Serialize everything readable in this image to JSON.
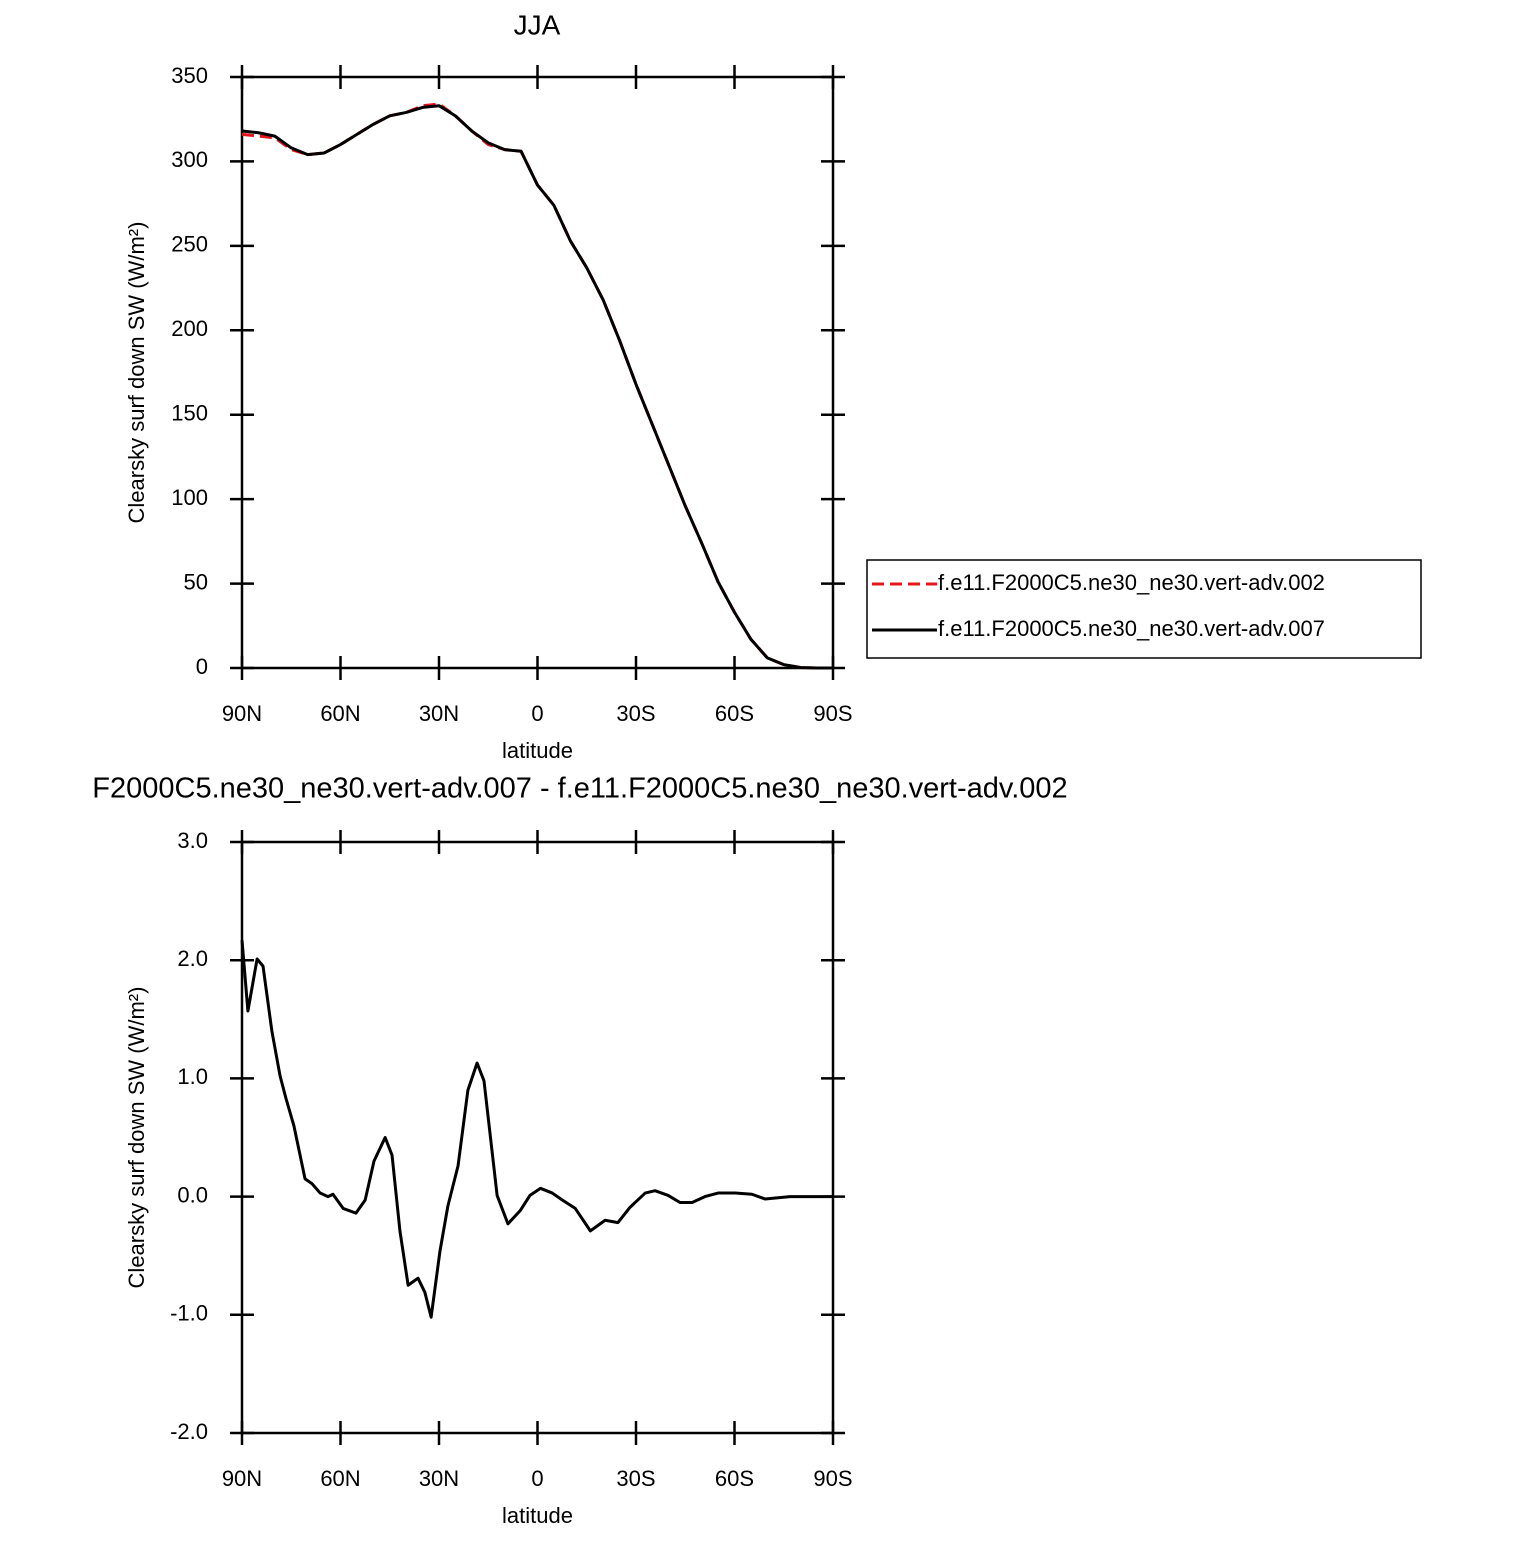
{
  "chart_data": [
    {
      "type": "line",
      "title": "JJA",
      "xlabel": "latitude",
      "ylabel": "Clearsky surf down SW (W/m²)",
      "x": [
        90,
        85,
        80,
        75,
        70,
        65,
        60,
        55,
        50,
        45,
        40,
        35,
        30,
        25,
        20,
        15,
        10,
        5,
        0,
        -5,
        -10,
        -15,
        -20,
        -25,
        -30,
        -35,
        -40,
        -45,
        -50,
        -55,
        -60,
        -65,
        -70,
        -75,
        -80,
        -85,
        -90
      ],
      "xlim": [
        90,
        -90
      ],
      "xticks": [
        {
          "value": 90,
          "label": "90N"
        },
        {
          "value": 60,
          "label": "60N"
        },
        {
          "value": 30,
          "label": "30N"
        },
        0,
        {
          "value": -30,
          "label": "30S"
        },
        {
          "value": -60,
          "label": "60S"
        },
        {
          "value": -90,
          "label": "90S"
        }
      ],
      "ylim": [
        0,
        350
      ],
      "yticks": [
        0,
        50,
        100,
        150,
        200,
        250,
        300,
        350
      ],
      "legend": "right",
      "series": [
        {
          "name": "f.e11.F2000C5.ne30_ne30.vert-adv.002",
          "color": "#e8141c",
          "dash": true,
          "values": [
            316,
            315,
            314,
            307,
            304,
            305,
            310,
            316,
            322,
            327,
            329,
            333,
            334,
            327,
            318,
            310,
            307,
            306,
            286,
            274,
            253,
            237,
            218,
            194,
            168,
            144,
            120,
            96,
            74,
            51,
            33,
            17,
            6,
            2,
            0.3,
            0,
            0
          ]
        },
        {
          "name": "f.e11.F2000C5.ne30_ne30.vert-adv.007",
          "color": "#000000",
          "dash": false,
          "values": [
            318,
            317,
            315,
            308,
            304,
            305,
            310,
            316,
            322,
            327,
            329,
            332,
            333,
            327,
            318,
            311,
            307,
            306,
            286,
            274,
            253,
            237,
            218,
            194,
            168,
            144,
            120,
            96,
            74,
            51,
            33,
            17,
            6,
            2,
            0.3,
            0,
            0
          ]
        }
      ]
    },
    {
      "type": "line",
      "title": "F2000C5.ne30_ne30.vert-adv.007 - f.e11.F2000C5.ne30_ne30.vert-adv.002",
      "xlabel": "latitude",
      "ylabel": "Clearsky surf down SW (W/m²)",
      "x": [
        90,
        88.2,
        85.4,
        83.6,
        80.9,
        78.4,
        76.6,
        74.2,
        70.8,
        68.7,
        66.2,
        63.8,
        62.3,
        59.2,
        55.3,
        52.5,
        49.8,
        46.4,
        44.3,
        41.9,
        39.4,
        36.4,
        34.3,
        32.4,
        29.7,
        27.3,
        24.2,
        21.2,
        18.4,
        16.3,
        12.3,
        9.0,
        5.3,
        2.3,
        -0.9,
        -4.5,
        -7.6,
        -11.5,
        -16.1,
        -20.6,
        -24.5,
        -28.2,
        -32.8,
        -35.8,
        -39.8,
        -43.4,
        -47.1,
        -51.0,
        -55.0,
        -60.2,
        -65.3,
        -69.3,
        -76.9,
        -90
      ],
      "xlim": [
        90,
        -90
      ],
      "xticks": [
        {
          "value": 90,
          "label": "90N"
        },
        {
          "value": 60,
          "label": "60N"
        },
        {
          "value": 30,
          "label": "30N"
        },
        0,
        {
          "value": -30,
          "label": "30S"
        },
        {
          "value": -60,
          "label": "60S"
        },
        {
          "value": -90,
          "label": "90S"
        }
      ],
      "ylim": [
        -2,
        3
      ],
      "yticks": [
        {
          "value": -2,
          "label": "-2.0"
        },
        {
          "value": -1,
          "label": "-1.0"
        },
        {
          "value": 0,
          "label": "0.0"
        },
        {
          "value": 1,
          "label": "1.0"
        },
        {
          "value": 2,
          "label": "2.0"
        },
        {
          "value": 3,
          "label": "3.0"
        }
      ],
      "series": [
        {
          "color": "#000000",
          "dash": false,
          "values": [
            2.17,
            1.57,
            2.01,
            1.95,
            1.4,
            1.02,
            0.83,
            0.6,
            0.15,
            0.11,
            0.03,
            0.0,
            0.02,
            -0.1,
            -0.14,
            -0.03,
            0.3,
            0.5,
            0.35,
            -0.29,
            -0.75,
            -0.69,
            -0.81,
            -1.02,
            -0.46,
            -0.08,
            0.26,
            0.9,
            1.13,
            0.98,
            0.01,
            -0.23,
            -0.12,
            0.01,
            0.07,
            0.03,
            -0.03,
            -0.1,
            -0.29,
            -0.2,
            -0.22,
            -0.09,
            0.03,
            0.05,
            0.01,
            -0.05,
            -0.05,
            0.0,
            0.03,
            0.03,
            0.02,
            -0.02,
            0.0,
            0.0
          ]
        }
      ]
    }
  ]
}
